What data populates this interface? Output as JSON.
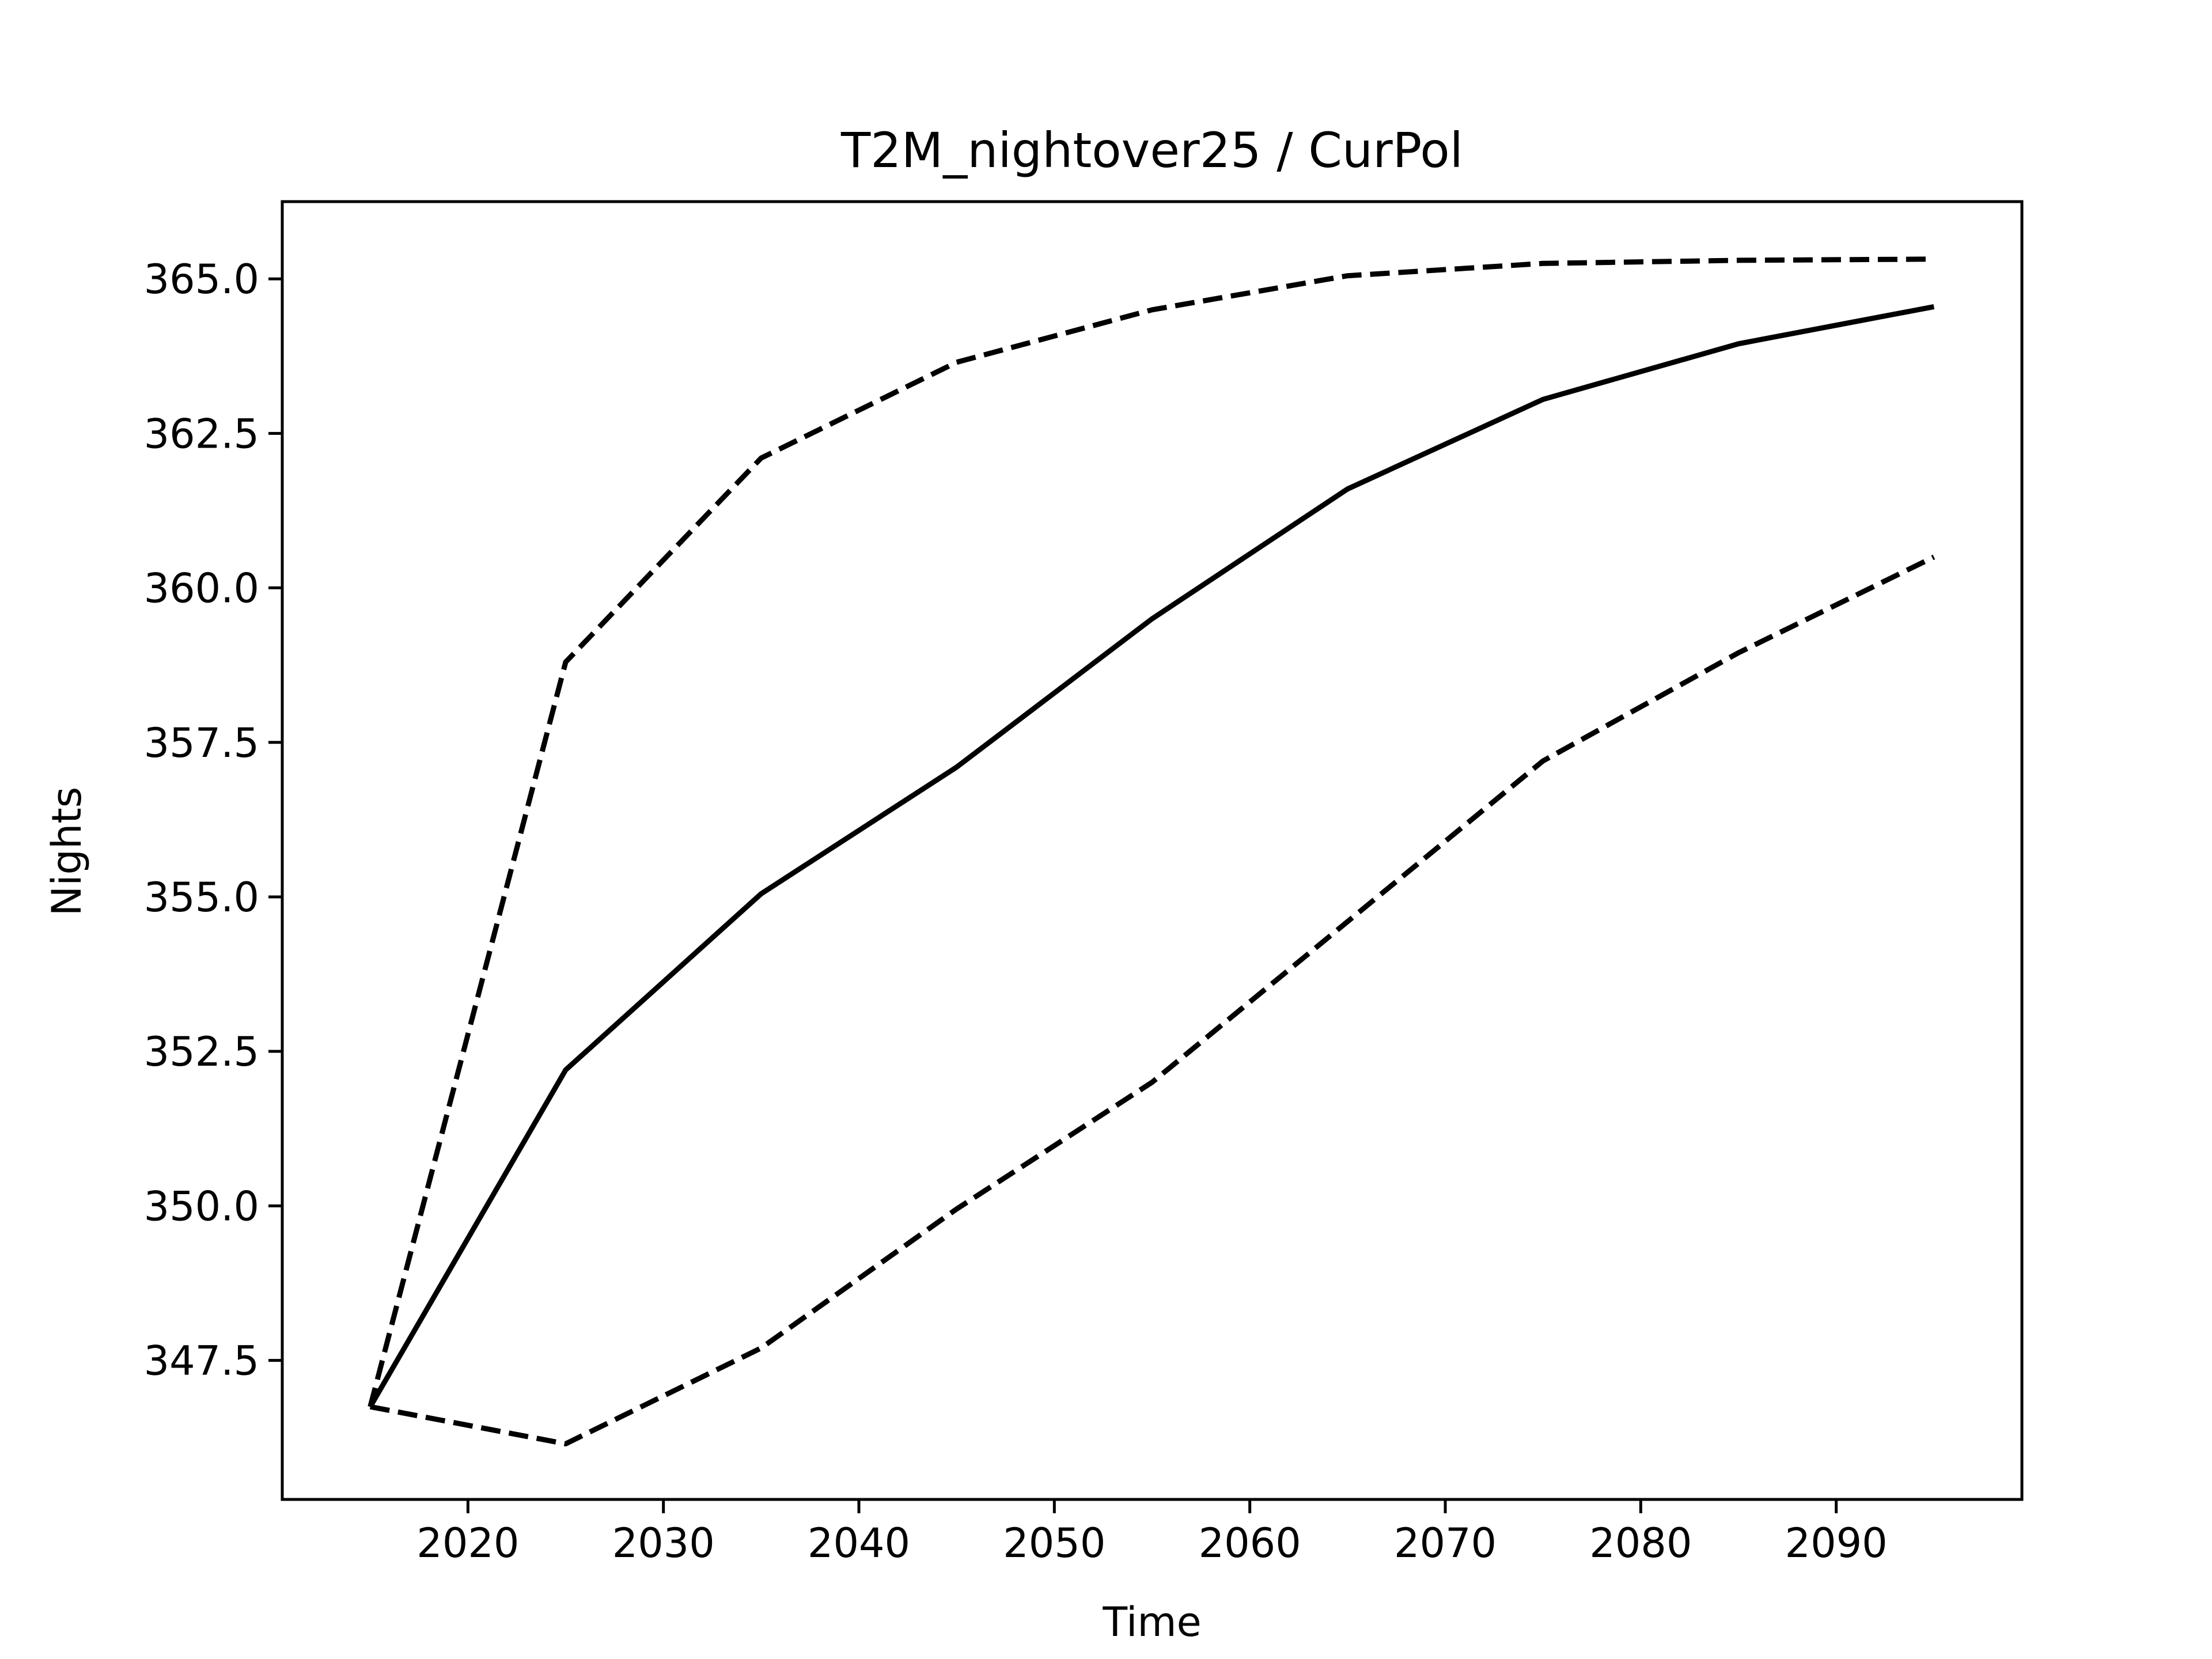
{
  "chart_data": {
    "type": "line",
    "title": "T2M_nightover25 / CurPol",
    "xlabel": "Time",
    "ylabel": "Nights",
    "x": [
      2015,
      2025,
      2035,
      2045,
      2055,
      2065,
      2075,
      2085,
      2095
    ],
    "xlim": [
      2010.5,
      2099.5
    ],
    "ylim": [
      345.25,
      366.25
    ],
    "xticks": [
      2020,
      2030,
      2040,
      2050,
      2060,
      2070,
      2080,
      2090
    ],
    "xtick_labels": [
      "2020",
      "2030",
      "2040",
      "2050",
      "2060",
      "2070",
      "2080",
      "2090"
    ],
    "yticks": [
      347.5,
      350.0,
      352.5,
      355.0,
      357.5,
      360.0,
      362.5,
      365.0
    ],
    "ytick_labels": [
      "347.5",
      "350.0",
      "352.5",
      "355.0",
      "357.5",
      "360.0",
      "362.5",
      "365.0"
    ],
    "grid": false,
    "legend": false,
    "series": [
      {
        "style": "solid",
        "color": "#000000",
        "values": [
          346.75,
          352.2,
          355.05,
          357.1,
          359.5,
          361.6,
          363.05,
          363.95,
          364.55
        ]
      },
      {
        "style": "dashed",
        "color": "#000000",
        "values": [
          346.75,
          358.8,
          362.1,
          363.65,
          364.5,
          365.05,
          365.25,
          365.3,
          365.32
        ]
      },
      {
        "style": "dashed",
        "color": "#000000",
        "values": [
          346.75,
          346.15,
          347.7,
          349.95,
          352.0,
          354.6,
          357.2,
          358.95,
          360.5
        ]
      }
    ]
  }
}
